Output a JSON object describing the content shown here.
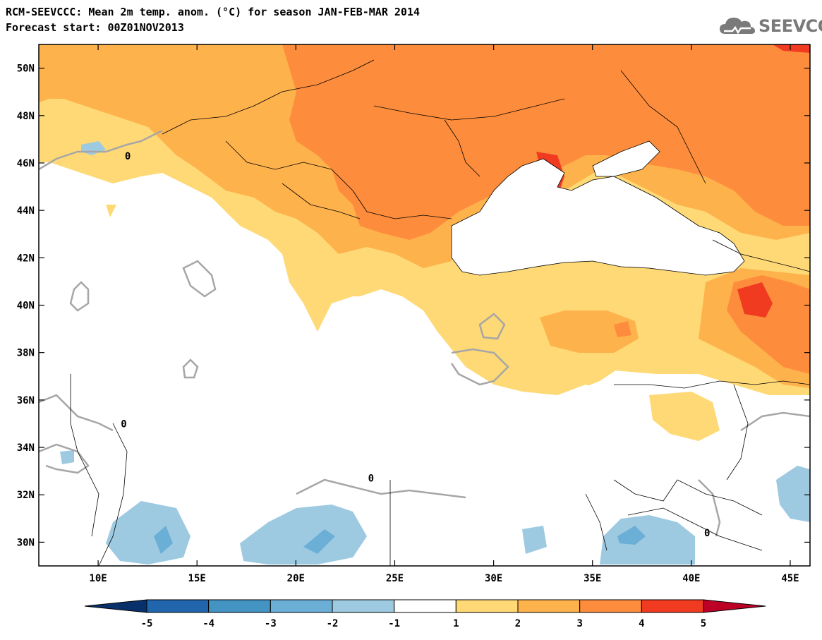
{
  "title": {
    "line1": "RCM-SEEVCCC: Mean 2m temp. anom. (°C) for season JAN-FEB-MAR 2014",
    "line2": "Forecast start: 00Z01NOV2013"
  },
  "logo": {
    "text": "SEEVCCC",
    "icon": "cloud-icon"
  },
  "map": {
    "lon_range": [
      7,
      46
    ],
    "lat_range": [
      29,
      51
    ],
    "x_ticks": [
      "10E",
      "15E",
      "20E",
      "25E",
      "30E",
      "35E",
      "40E",
      "45E"
    ],
    "y_ticks": [
      "50N",
      "48N",
      "46N",
      "44N",
      "42N",
      "40N",
      "38N",
      "36N",
      "34N",
      "32N",
      "30N"
    ],
    "contour_label": "0"
  },
  "colorbar": {
    "labels": [
      "-5",
      "-4",
      "-3",
      "-2",
      "-1",
      "1",
      "2",
      "3",
      "4",
      "5"
    ],
    "colors": [
      "#08306b",
      "#2166ac",
      "#4393c3",
      "#6baed6",
      "#9ecae1",
      "#ffffff",
      "#fed976",
      "#feb24c",
      "#fd8d3c",
      "#f03b20",
      "#bd0026"
    ]
  }
}
